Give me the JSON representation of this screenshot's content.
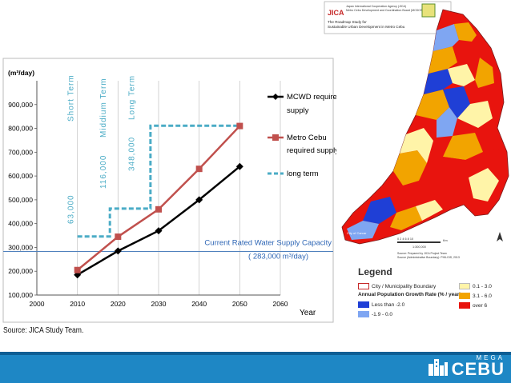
{
  "chart_data": {
    "type": "line",
    "x": [
      2010,
      2020,
      2030,
      2040,
      2050
    ],
    "xlim": [
      2000,
      2060
    ],
    "xticks": [
      2000,
      2010,
      2020,
      2030,
      2040,
      2050,
      2060
    ],
    "ylim": [
      100000,
      1000000
    ],
    "yticks": [
      "100,000",
      "200,000",
      "300,000",
      "400,000",
      "500,000",
      "600,000",
      "700,000",
      "800,000",
      "900,000"
    ],
    "ytick_values": [
      100000,
      200000,
      300000,
      400000,
      500000,
      600000,
      700000,
      800000,
      900000
    ],
    "xtick_labels": [
      "2000",
      "2010",
      "2020",
      "2030",
      "2040",
      "2050",
      "2060"
    ],
    "ylabel": "(m³/day)",
    "xlabel": "Year",
    "grid": "vertical",
    "series": [
      {
        "name": "MCWD required supply",
        "color": "#000000",
        "marker": "diamond",
        "values": [
          185000,
          285000,
          370000,
          500000,
          640000
        ]
      },
      {
        "name": "Metro Cebu required supply",
        "color": "#c0504d",
        "marker": "square",
        "values": [
          205000,
          345000,
          460000,
          630000,
          810000
        ]
      }
    ],
    "long_term": {
      "name": "long term",
      "color": "#4bacc6",
      "steps": [
        {
          "x_start": 2010,
          "x_end": 2018,
          "value": 346000
        },
        {
          "x_start": 2018,
          "x_end": 2028,
          "value": 463000
        },
        {
          "x_start": 2028,
          "x_end": 2050,
          "value": 811000
        }
      ]
    },
    "capacity": {
      "value": 283000,
      "color": "#4f81bd",
      "label_line1": "Current Rated Water Supply Capacity",
      "label_line2": "( 283,000 m³/day)"
    },
    "terms": [
      {
        "label": "Short Term",
        "amount": "63,000"
      },
      {
        "label": "Middium Term",
        "amount": "116,000"
      },
      {
        "label": "Long Term",
        "amount": "348,000"
      }
    ],
    "legend": {
      "position": "right",
      "mcwd_line1": "MCWD required",
      "mcwd_line2": "supply",
      "metro_line1": "Metro Cebu",
      "metro_line2": "required supply",
      "long_term": "long term"
    }
  },
  "source_note": "Source: JICA Study Team.",
  "map": {
    "header_line1": "Japan International Cooperation Agency (JICA)",
    "header_line2": "Metro Cebu Development and Coordination Board (MCDCB)",
    "header_line3": "The Roadmap Study for",
    "header_line4": "Sustainable Urban Development in Metro Cebu",
    "logo_text": "JICA",
    "city_label": "City of Carcar",
    "scale_text": "0  2  4  6  8  10",
    "scale_unit": "Km",
    "scale_ratio": "1:300,000",
    "source_line1": "Source: Prepared by JICA Project Team",
    "source_line2": "Source (Administrative Boundary): PHILGIS, 2013"
  },
  "map_legend": {
    "title": "Legend",
    "boundary": "City / Municipality Boundary",
    "growth_title": "Annual Population Growth Rate (% / year)",
    "items": [
      {
        "label": "Less than -2.0",
        "color": "#1f3fd6"
      },
      {
        "label": "-1.9 - 0.0",
        "color": "#7fa6f2"
      },
      {
        "label": "0.1 - 3.0",
        "color": "#fff4a8"
      },
      {
        "label": "3.1 - 6.0",
        "color": "#f2a400"
      },
      {
        "label": "over 6",
        "color": "#e8140e"
      }
    ]
  },
  "brand": {
    "mega": "MEGA",
    "cebu": "CEBU"
  },
  "colors": {
    "footer": "#1e87c5",
    "footer_stripe": "#0e5e94"
  }
}
